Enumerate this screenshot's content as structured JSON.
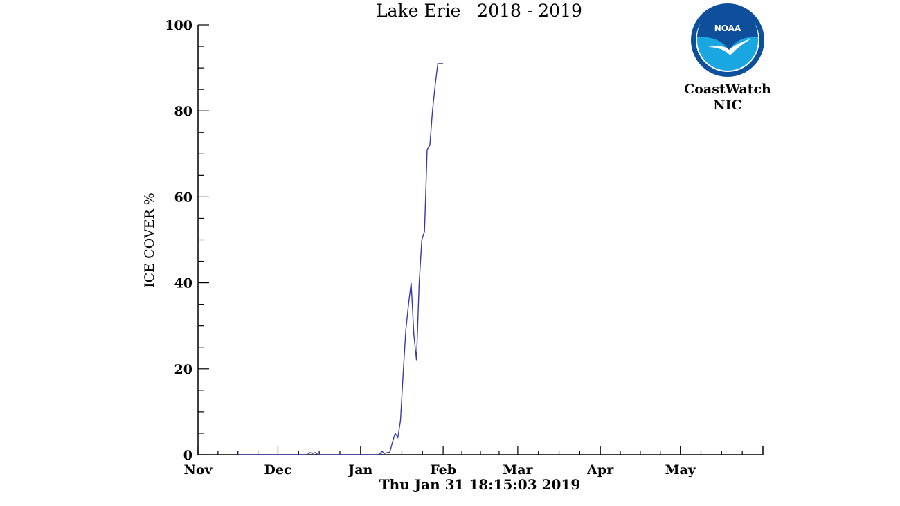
{
  "chart_data": {
    "type": "line",
    "title": "Lake Erie   2018 - 2019",
    "ylabel": "ICE COVER %",
    "xlabel": "",
    "footer_timestamp": "Thu Jan 31 18:15:03 2019",
    "xlim": [
      "2018-11-01",
      "2019-06-01"
    ],
    "ylim": [
      0,
      100
    ],
    "x_ticks": [
      {
        "label": "Nov",
        "date": "2018-11-01"
      },
      {
        "label": "Dec",
        "date": "2018-12-01"
      },
      {
        "label": "Jan",
        "date": "2019-01-01"
      },
      {
        "label": "Feb",
        "date": "2019-02-01"
      },
      {
        "label": "Mar",
        "date": "2019-03-01"
      },
      {
        "label": "Apr",
        "date": "2019-04-01"
      },
      {
        "label": "May",
        "date": "2019-05-01"
      }
    ],
    "y_ticks": [
      0,
      20,
      40,
      60,
      80,
      100
    ],
    "line_color": "#3a3aa8",
    "grid": false,
    "series": [
      {
        "x": [
          "2018-11-16",
          "2018-11-25",
          "2018-12-05",
          "2018-12-12",
          "2018-12-13",
          "2018-12-14",
          "2018-12-15",
          "2018-12-16",
          "2018-12-25",
          "2019-01-01",
          "2019-01-08",
          "2019-01-09",
          "2019-01-10",
          "2019-01-11",
          "2019-01-12",
          "2019-01-13",
          "2019-01-14",
          "2019-01-15",
          "2019-01-16",
          "2019-01-17",
          "2019-01-18",
          "2019-01-19",
          "2019-01-20",
          "2019-01-21",
          "2019-01-22",
          "2019-01-23",
          "2019-01-24",
          "2019-01-25",
          "2019-01-26",
          "2019-01-27",
          "2019-01-28",
          "2019-01-29",
          "2019-01-30",
          "2019-01-31",
          "2019-02-01"
        ],
        "y": [
          0,
          0,
          0,
          0,
          0.5,
          0.3,
          0.5,
          0,
          0,
          0,
          0,
          0.8,
          0.3,
          0.5,
          0.6,
          3,
          5,
          4,
          8,
          19,
          29,
          35,
          40,
          28,
          22,
          40,
          50,
          52,
          71,
          72,
          80,
          86,
          91,
          91,
          91
        ]
      }
    ]
  },
  "logo": {
    "icon": "noaa-logo-icon",
    "badge_text": "NOAA",
    "line1": "CoastWatch",
    "line2": "NIC",
    "outer_color": "#0d4f9b",
    "inner_color": "#1aa6e0"
  }
}
